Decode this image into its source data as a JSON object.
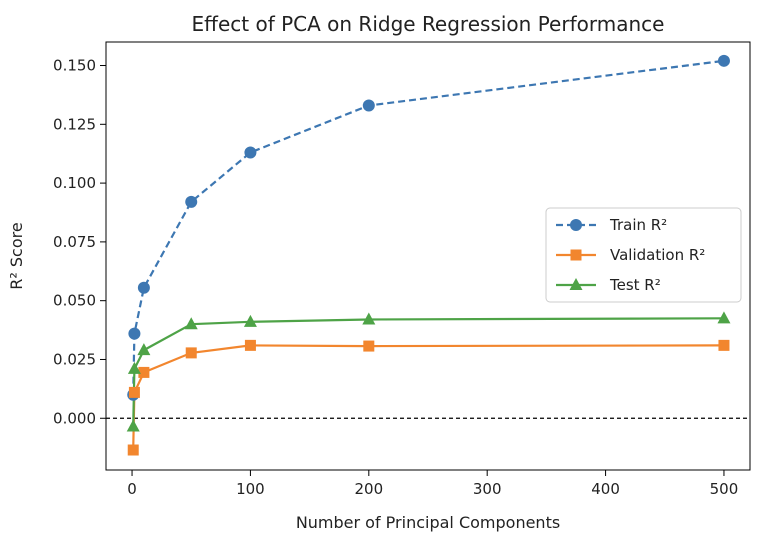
{
  "chart_data": {
    "type": "line",
    "title": "Effect of PCA on Ridge Regression Performance",
    "xlabel": "Number of Principal Components",
    "ylabel": "R² Score",
    "xlim": [
      -22,
      522
    ],
    "ylim": [
      -0.022,
      0.16
    ],
    "xticks": [
      0,
      100,
      200,
      300,
      400,
      500
    ],
    "xtick_labels": [
      "0",
      "100",
      "200",
      "300",
      "400",
      "500"
    ],
    "yticks": [
      0.0,
      0.025,
      0.05,
      0.075,
      0.1,
      0.125,
      0.15
    ],
    "ytick_labels": [
      "0.000",
      "0.025",
      "0.050",
      "0.075",
      "0.100",
      "0.125",
      "0.150"
    ],
    "grid": false,
    "reference_line": {
      "y": 0,
      "style": "dashed",
      "color": "#000000"
    },
    "legend_placement": "center-right",
    "x": [
      1,
      2,
      10,
      50,
      100,
      200,
      500
    ],
    "series": [
      {
        "name": "Train R²",
        "values": [
          0.01,
          0.036,
          0.0555,
          0.092,
          0.113,
          0.133,
          0.152
        ],
        "color": "#3d77b2",
        "marker": "circle",
        "line": "dashed"
      },
      {
        "name": "Validation R²",
        "values": [
          -0.0135,
          0.011,
          0.0195,
          0.0278,
          0.031,
          0.0307,
          0.031
        ],
        "color": "#f2862e",
        "marker": "square",
        "line": "solid"
      },
      {
        "name": "Test R²",
        "values": [
          -0.0035,
          0.021,
          0.029,
          0.04,
          0.041,
          0.042,
          0.0425
        ],
        "color": "#4ea347",
        "marker": "triangle",
        "line": "solid"
      }
    ]
  }
}
